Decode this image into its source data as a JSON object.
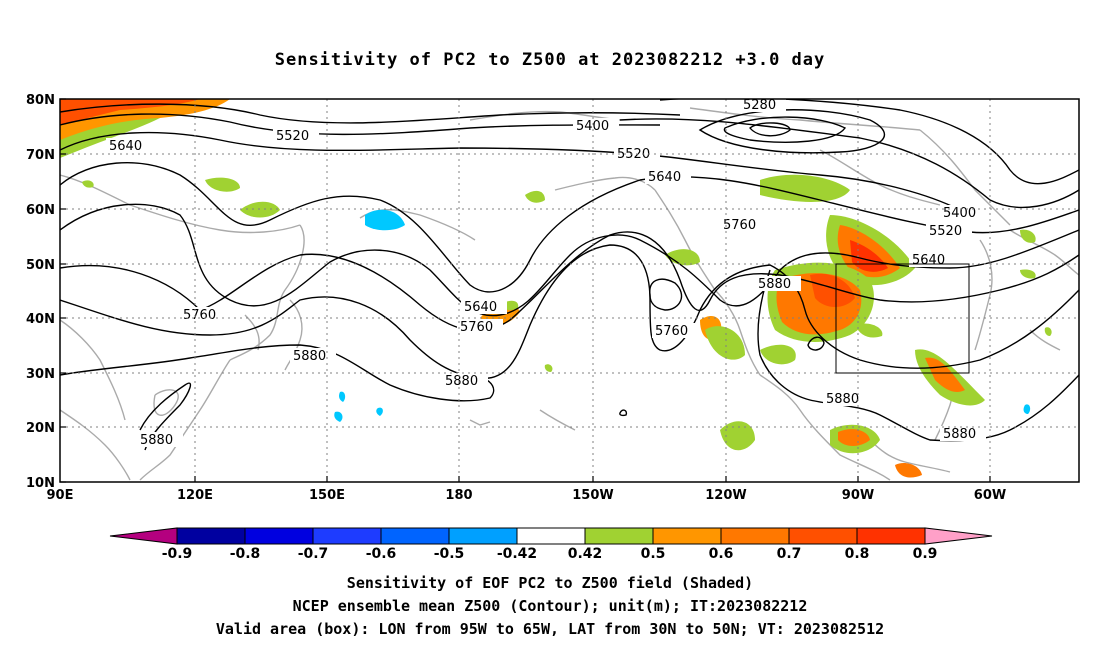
{
  "title": "Sensitivity of PC2 to Z500 at 2023082212 +3.0 day",
  "axes": {
    "lat_labels": [
      "80N",
      "70N",
      "60N",
      "50N",
      "40N",
      "30N",
      "20N",
      "10N"
    ],
    "lon_labels": [
      "90E",
      "120E",
      "150E",
      "180",
      "150W",
      "120W",
      "90W",
      "60W"
    ]
  },
  "contour_labels": {
    "c5280": "5280",
    "c5400a": "5400",
    "c5400b": "5400",
    "c5520a": "5520",
    "c5520b": "5520",
    "c5520c": "5520",
    "c5640a": "5640",
    "c5640b": "5640",
    "c5640c": "5640",
    "c5640d": "5640",
    "c5760a": "5760",
    "c5760b": "5760",
    "c5760c": "5760",
    "c5760d": "5760",
    "c5880a": "5880",
    "c5880b": "5880",
    "c5880c": "5880",
    "c5880d": "5880",
    "c5880e": "5880",
    "c5880f": "5880"
  },
  "colorbar": {
    "ticks": [
      "-0.9",
      "-0.8",
      "-0.7",
      "-0.6",
      "-0.5",
      "-0.42",
      "0.42",
      "0.5",
      "0.6",
      "0.7",
      "0.8",
      "0.9"
    ],
    "colors": [
      "#b4007f",
      "#0000a0",
      "#0000e0",
      "#1e3cff",
      "#0064ff",
      "#00a0ff",
      "#00c8ff",
      "#ffffff",
      "#a0d232",
      "#ff9600",
      "#ff7800",
      "#ff5000",
      "#ff3200",
      "#ff0000",
      "#ffa0c8"
    ]
  },
  "captions": {
    "line1": "Sensitivity of EOF PC2 to Z500 field (Shaded)",
    "line2": "NCEP ensemble mean Z500 (Contour); unit(m); IT:2023082212",
    "line3": "Valid area (box): LON from 95W to 65W, LAT from 30N to 50N; VT: 2023082512"
  },
  "valid_box": {
    "lon_west": "95W",
    "lon_east": "65W",
    "lat_south": "30N",
    "lat_north": "50N"
  }
}
